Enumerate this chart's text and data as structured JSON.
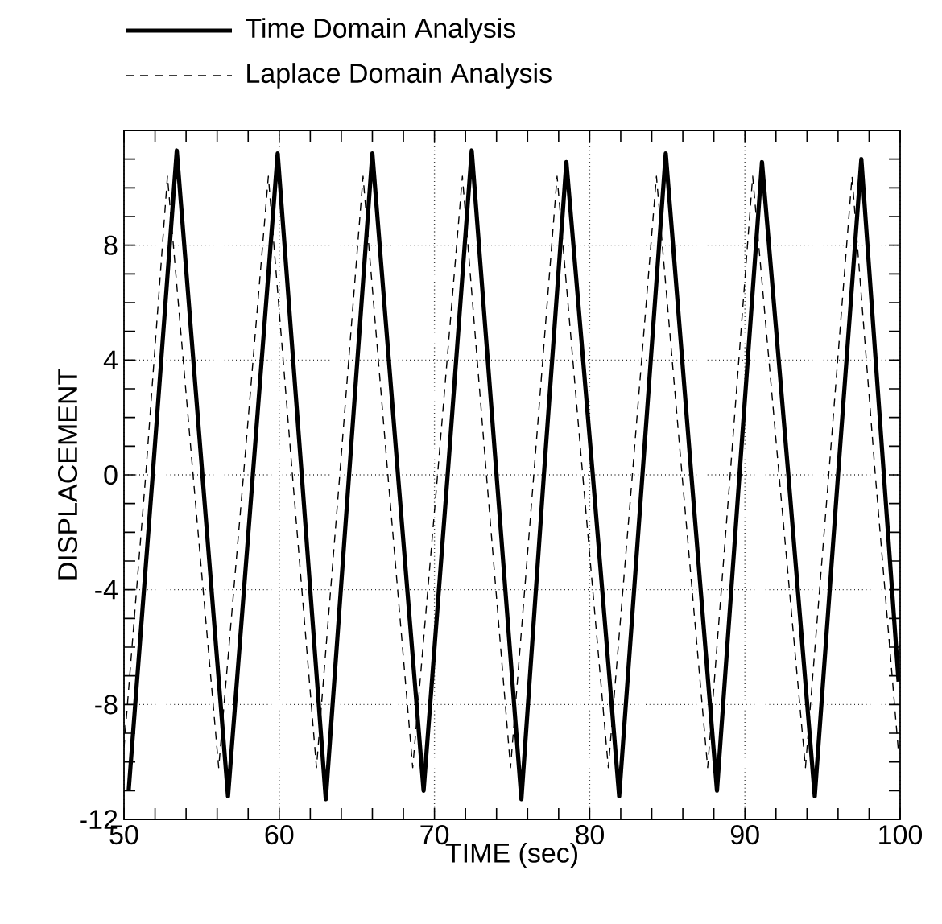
{
  "chart_data": {
    "type": "line",
    "xlabel": "TIME (sec)",
    "ylabel": "DISPLACEMENT",
    "xlim": [
      50,
      100
    ],
    "xticks": [
      50,
      60,
      70,
      80,
      90,
      100
    ],
    "ylim": [
      -12,
      12
    ],
    "yticks": [
      -12,
      -8,
      -4,
      0,
      4,
      8,
      {
        "value": 12,
        "label": null
      }
    ],
    "grid": true,
    "legend": "top left",
    "series": [
      {
        "name": "Time Domain Analysis",
        "color": "#000000",
        "line_style": "solid",
        "x": [
          50.3,
          51.85,
          53.4,
          55.05,
          56.7,
          58.3,
          59.9,
          61.45,
          63.0,
          64.5,
          66.0,
          67.65,
          69.3,
          70.85,
          72.4,
          74.0,
          75.6,
          77.05,
          78.5,
          80.2,
          81.9,
          83.4,
          84.9,
          86.55,
          88.2,
          89.65,
          91.1,
          92.8,
          94.5,
          96.0,
          97.5,
          99.9
        ],
        "values": [
          -11.0,
          0,
          11.3,
          0,
          -11.2,
          0,
          11.2,
          0,
          -11.3,
          0,
          11.2,
          0,
          -11.0,
          0,
          11.3,
          0,
          -11.3,
          0,
          10.9,
          0,
          -11.2,
          0,
          11.2,
          0,
          -11.0,
          0,
          10.9,
          0,
          -11.2,
          0,
          11.0,
          -7.2
        ]
      },
      {
        "name": "Laplace Domain Analysis",
        "color": "#000000",
        "line_style": "dashed",
        "x": [
          50.0,
          51.4,
          52.8,
          54.45,
          56.1,
          57.7,
          59.3,
          60.85,
          62.4,
          63.9,
          65.4,
          67.0,
          68.6,
          70.2,
          71.8,
          73.35,
          74.9,
          76.4,
          77.9,
          79.55,
          81.2,
          82.75,
          84.3,
          85.95,
          87.6,
          89.05,
          90.5,
          92.2,
          93.9,
          95.4,
          96.9,
          98.4,
          99.9
        ],
        "values": [
          -9.5,
          0,
          10.4,
          0,
          -10.2,
          0,
          10.4,
          0,
          -10.2,
          0,
          10.4,
          0,
          -10.2,
          0,
          10.4,
          0,
          -10.2,
          0,
          10.4,
          0,
          -10.2,
          0,
          10.4,
          0,
          -10.2,
          0,
          10.4,
          0,
          -10.2,
          0,
          10.4,
          0,
          -9.7
        ]
      }
    ]
  }
}
